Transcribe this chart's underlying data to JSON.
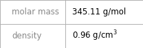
{
  "rows": [
    {
      "label": "molar mass",
      "value": "345.11 g/mol"
    },
    {
      "label": "density",
      "value": "0.96 g/cm$^3$"
    }
  ],
  "bg_color": "#ffffff",
  "border_color": "#b0b0b0",
  "label_color": "#888888",
  "value_color": "#000000",
  "font_size": 8.5,
  "col_split": 0.455,
  "figsize": [
    2.08,
    0.7
  ],
  "dpi": 100
}
